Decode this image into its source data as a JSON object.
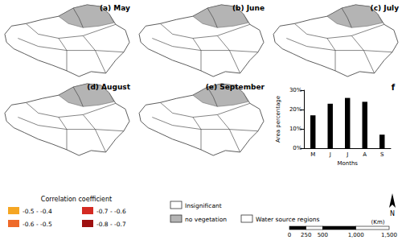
{
  "panels": [
    {
      "label": "(a) May"
    },
    {
      "label": "(b) June"
    },
    {
      "label": "(c) July"
    },
    {
      "label": "(d) August"
    },
    {
      "label": "(e) September"
    }
  ],
  "legend": {
    "title": "Correlation coefficient",
    "items": [
      {
        "label": "-0.5 - -0.4",
        "color": "#f5a623"
      },
      {
        "label": "-0.6 - -0.5",
        "color": "#ee6a2a"
      },
      {
        "label": "-0.7 - -0.6",
        "color": "#d42a22"
      },
      {
        "label": "-0.8 - -0.7",
        "color": "#9e1010"
      }
    ],
    "other": [
      {
        "label": "Insignificant",
        "color": "#ffffff"
      },
      {
        "label": "no vegetation",
        "color": "#b4b4b4"
      },
      {
        "label": "Water source regions",
        "color": "none"
      }
    ]
  },
  "scale_bar": {
    "unit": "(Km)",
    "ticks": [
      0,
      250,
      500,
      {
        "value": 1000,
        "label": "1,000"
      },
      {
        "value": 1500,
        "label": "1,500"
      }
    ]
  },
  "north": "N",
  "chart_data": {
    "type": "bar",
    "title": "f",
    "categories": [
      "M",
      "J",
      "J",
      "A",
      "S"
    ],
    "values": [
      17,
      23,
      26,
      24,
      7
    ],
    "color": "#000000",
    "x_label": "Months",
    "y_label": "Area percentage",
    "ylim": [
      0,
      30
    ],
    "yticks": [
      {
        "value": 0,
        "label": "0%"
      },
      {
        "value": 10,
        "label": "10%"
      },
      {
        "value": 20,
        "label": "20%"
      },
      {
        "value": 30,
        "label": "30%"
      }
    ],
    "grid": false
  }
}
